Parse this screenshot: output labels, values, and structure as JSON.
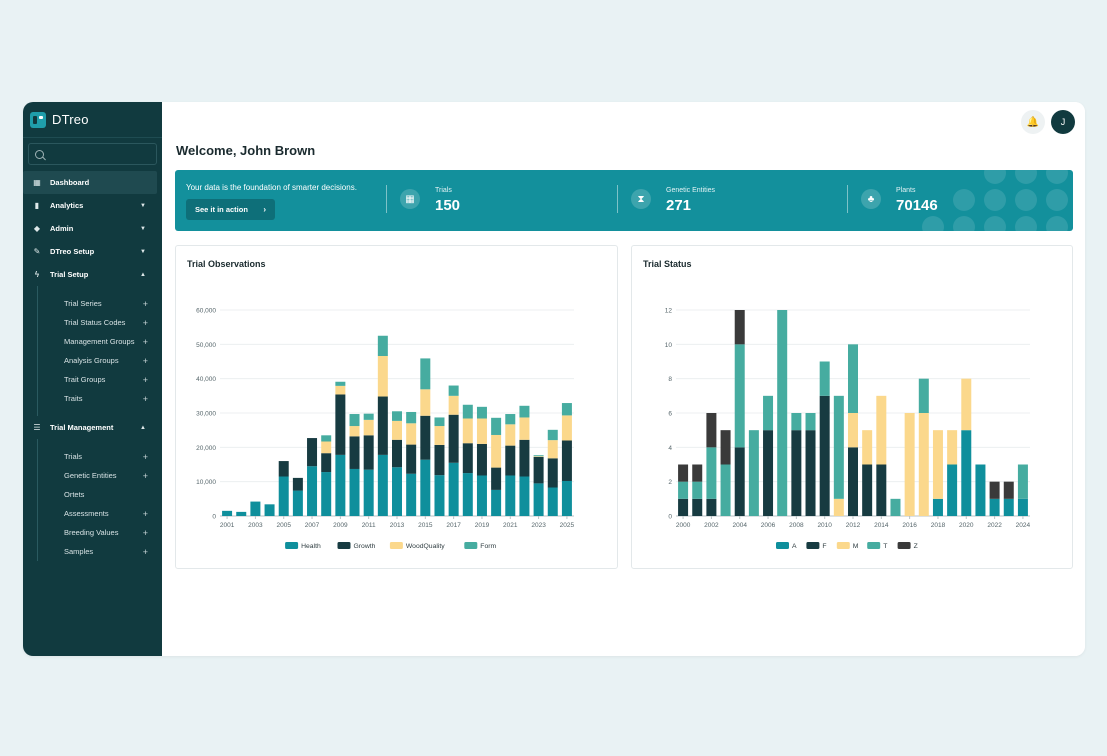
{
  "app": {
    "name": "DTreo"
  },
  "sidebar": {
    "search_placeholder": "",
    "items": [
      {
        "label": "Dashboard",
        "icon": "dashboard-icon",
        "active": true
      },
      {
        "label": "Analytics",
        "icon": "bar-chart-icon",
        "expanded": false
      },
      {
        "label": "Admin",
        "icon": "shield-icon",
        "expanded": false
      },
      {
        "label": "DTreo Setup",
        "icon": "wrench-icon",
        "expanded": false
      },
      {
        "label": "Trial Setup",
        "icon": "bolt-icon",
        "expanded": true,
        "children": [
          "Trial Series",
          "Trial Status Codes",
          "Management Groups",
          "Analysis Groups",
          "Trait Groups",
          "Traits"
        ],
        "children_plus": [
          true,
          true,
          true,
          true,
          true,
          true
        ]
      },
      {
        "label": "Trial Management",
        "icon": "clipboard-icon",
        "expanded": true,
        "children": [
          "Trials",
          "Genetic Entities",
          "Ortets",
          "Assessments",
          "Breeding Values",
          "Samples"
        ],
        "children_plus": [
          true,
          true,
          false,
          true,
          true,
          true
        ]
      }
    ]
  },
  "header": {
    "avatar_initial": "J"
  },
  "welcome": "Welcome, John Brown",
  "banner": {
    "tagline": "Your data is the foundation of smarter decisions.",
    "cta": "See it in action",
    "stats": [
      {
        "label": "Trials",
        "value": "150",
        "icon": "grid-icon"
      },
      {
        "label": "Genetic Entities",
        "value": "271",
        "icon": "dna-icon"
      },
      {
        "label": "Plants",
        "value": "70146",
        "icon": "tree-icon"
      }
    ]
  },
  "chart_data": [
    {
      "type": "bar",
      "stacked": true,
      "title": "Trial Observations",
      "categories": [
        "2001",
        "2002",
        "2003",
        "2004",
        "2005",
        "2006",
        "2007",
        "2008",
        "2009",
        "2010",
        "2011",
        "2012",
        "2013",
        "2014",
        "2015",
        "2016",
        "2017",
        "2018",
        "2019",
        "2020",
        "2021",
        "2022",
        "2023",
        "2024",
        "2025"
      ],
      "xtick_labels": [
        "2001",
        "2003",
        "2005",
        "2007",
        "2009",
        "2011",
        "2013",
        "2015",
        "2017",
        "2019",
        "2021",
        "2023",
        "2025"
      ],
      "ylim": [
        0,
        60000
      ],
      "yticks": [
        "0",
        "10,000",
        "20,000",
        "30,000",
        "40,000",
        "50,000",
        "60,000"
      ],
      "grid": true,
      "legend": "bottom",
      "colors": [
        "#0f8f9c",
        "#173b41",
        "#fbd88c",
        "#46aca0"
      ],
      "series": [
        {
          "name": "Health",
          "values": [
            1500,
            1200,
            4200,
            3400,
            11500,
            7400,
            14500,
            12800,
            17800,
            13700,
            13500,
            17800,
            14200,
            12300,
            16400,
            11900,
            15500,
            12500,
            11800,
            7600,
            11800,
            11500,
            9500,
            8300,
            10200
          ]
        },
        {
          "name": "Growth",
          "values": [
            0,
            0,
            0,
            0,
            4500,
            3700,
            8200,
            5500,
            17600,
            9500,
            10000,
            17000,
            8000,
            8500,
            12800,
            8800,
            14000,
            8700,
            9200,
            6500,
            8700,
            10700,
            7700,
            8500,
            11800
          ]
        },
        {
          "name": "WoodQuality",
          "values": [
            0,
            0,
            0,
            0,
            0,
            0,
            0,
            3400,
            2500,
            3000,
            4500,
            11800,
            5500,
            6200,
            7700,
            5500,
            5500,
            7200,
            7400,
            9500,
            6200,
            6500,
            200,
            5300,
            7300
          ]
        },
        {
          "name": "Form",
          "values": [
            0,
            0,
            0,
            0,
            0,
            0,
            0,
            1800,
            1200,
            3500,
            1800,
            5900,
            2800,
            3300,
            9000,
            2500,
            3000,
            4000,
            3400,
            5000,
            3000,
            3400,
            300,
            3000,
            3600
          ]
        }
      ]
    },
    {
      "type": "bar",
      "stacked": true,
      "title": "Trial Status",
      "categories": [
        "2000",
        "2001",
        "2002",
        "2003",
        "2004",
        "2005",
        "2006",
        "2007",
        "2008",
        "2009",
        "2010",
        "2011",
        "2012",
        "2013",
        "2014",
        "2015",
        "2016",
        "2017",
        "2018",
        "2019",
        "2020",
        "2021",
        "2022",
        "2023",
        "2024"
      ],
      "xtick_labels": [
        "2000",
        "2002",
        "2004",
        "2006",
        "2008",
        "2010",
        "2012",
        "2014",
        "2016",
        "2018",
        "2020",
        "2022",
        "2024"
      ],
      "ylim": [
        0,
        12
      ],
      "yticks": [
        "0",
        "2",
        "4",
        "6",
        "8",
        "10",
        "12"
      ],
      "grid": true,
      "legend": "bottom",
      "colors": [
        "#0f8f9c",
        "#173b41",
        "#fbd88c",
        "#46aca0",
        "#3a3a3a"
      ],
      "series": [
        {
          "name": "A",
          "values": [
            0,
            0,
            0,
            0,
            0,
            0,
            0,
            0,
            0,
            0,
            0,
            0,
            0,
            0,
            0,
            0,
            0,
            0,
            1,
            3,
            5,
            3,
            1,
            1,
            1
          ]
        },
        {
          "name": "F",
          "values": [
            1,
            1,
            1,
            0,
            4,
            0,
            5,
            0,
            5,
            5,
            7,
            0,
            4,
            3,
            3,
            0,
            0,
            0,
            0,
            0,
            0,
            0,
            0,
            0,
            0
          ]
        },
        {
          "name": "M",
          "values": [
            0,
            0,
            0,
            0,
            0,
            0,
            0,
            0,
            0,
            0,
            0,
            1,
            2,
            2,
            4,
            0,
            6,
            6,
            4,
            2,
            3,
            0,
            0,
            0,
            0
          ]
        },
        {
          "name": "T",
          "values": [
            1,
            1,
            3,
            3,
            6,
            5,
            2,
            12,
            1,
            1,
            2,
            6,
            4,
            0,
            0,
            1,
            0,
            2,
            0,
            0,
            0,
            0,
            0,
            0,
            2
          ]
        },
        {
          "name": "Z",
          "values": [
            1,
            1,
            2,
            2,
            2,
            0,
            0,
            0,
            0,
            0,
            0,
            0,
            0,
            0,
            0,
            0,
            0,
            0,
            0,
            0,
            0,
            0,
            1,
            1,
            0
          ]
        }
      ]
    }
  ]
}
